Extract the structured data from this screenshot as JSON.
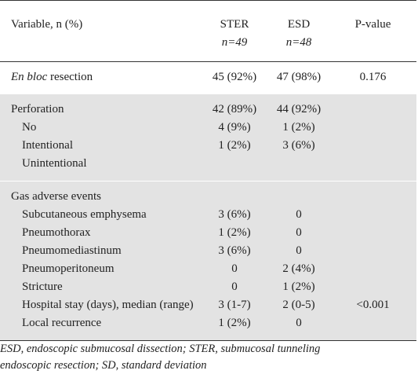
{
  "header": {
    "variable": "Variable, n (%)",
    "ster": "STER",
    "esd": "ESD",
    "pvalue": "P-value",
    "ster_n": "n=49",
    "esd_n": "n=48"
  },
  "en_bloc": {
    "label_italic": "En bloc",
    "label_rest": " resection",
    "ster": "45 (92%)",
    "esd": "47 (98%)",
    "p": "0.176"
  },
  "perforation": [
    {
      "label": "Perforation",
      "ster": "42 (89%)",
      "esd": "44 (92%)",
      "p": ""
    },
    {
      "label": "No",
      "ster": "4 (9%)",
      "esd": "1 (2%)",
      "p": ""
    },
    {
      "label": "Intentional",
      "ster": "1 (2%)",
      "esd": "3 (6%)",
      "p": ""
    },
    {
      "label": "Unintentional",
      "ster": "",
      "esd": "",
      "p": ""
    }
  ],
  "gas": [
    {
      "label": "Gas adverse events",
      "ster": "",
      "esd": "",
      "p": ""
    },
    {
      "label": "Subcutaneous emphysema",
      "ster": "3 (6%)",
      "esd": "0",
      "p": ""
    },
    {
      "label": "Pneumothorax",
      "ster": "1 (2%)",
      "esd": "0",
      "p": ""
    },
    {
      "label": "Pneumomediastinum",
      "ster": "3 (6%)",
      "esd": "0",
      "p": ""
    },
    {
      "label": "Pneumoperitoneum",
      "ster": "0",
      "esd": "2 (4%)",
      "p": ""
    },
    {
      "label": "Stricture",
      "ster": "0",
      "esd": "1 (2%)",
      "p": ""
    },
    {
      "label": "Hospital stay (days), median (range)",
      "ster": "3 (1-7)",
      "esd": "2 (0-5)",
      "p": "<0.001"
    },
    {
      "label": "Local recurrence",
      "ster": "1 (2%)",
      "esd": "0",
      "p": ""
    }
  ],
  "footnote": {
    "line1": "ESD, endoscopic submucosal dissection; STER, submucosal tunneling",
    "line2": "endoscopic resection; SD, standard deviation"
  }
}
